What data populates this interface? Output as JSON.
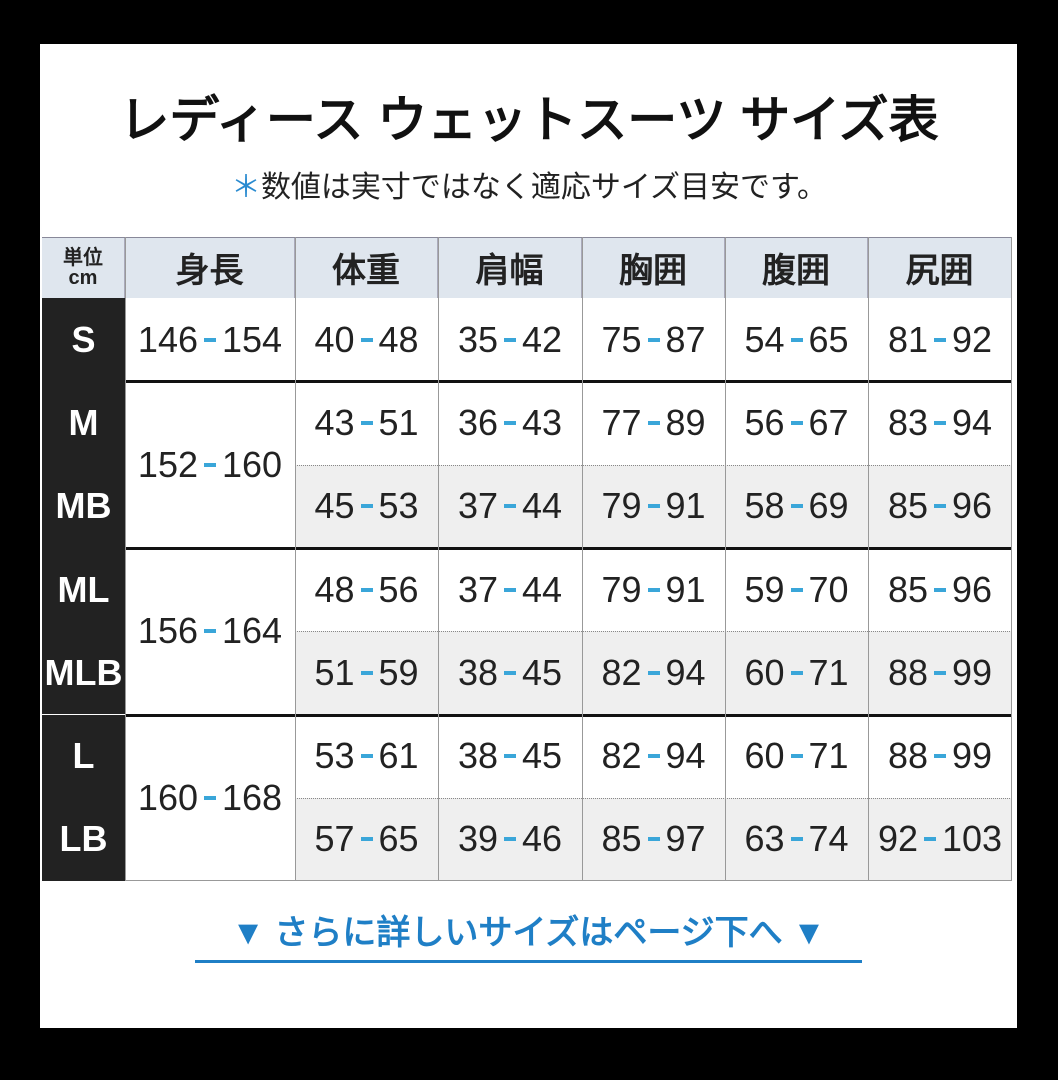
{
  "title": "レディース ウェットスーツ サイズ表",
  "note_mark": "＊",
  "note": "数値は実寸ではなく適応サイズ目安です。",
  "table": {
    "unit": [
      "単位",
      "cm"
    ],
    "header": [
      "身長",
      "体重",
      "肩幅",
      "胸囲",
      "腹囲",
      "尻囲"
    ],
    "groups": [
      {
        "height": [
          146,
          154
        ],
        "sizes": [
          {
            "label": "S",
            "values": [
              [
                40,
                48
              ],
              [
                35,
                42
              ],
              [
                75,
                87
              ],
              [
                54,
                65
              ],
              [
                81,
                92
              ]
            ]
          }
        ]
      },
      {
        "height": [
          152,
          160
        ],
        "sizes": [
          {
            "label": "M",
            "values": [
              [
                43,
                51
              ],
              [
                36,
                43
              ],
              [
                77,
                89
              ],
              [
                56,
                67
              ],
              [
                83,
                94
              ]
            ]
          },
          {
            "label": "MB",
            "values": [
              [
                45,
                53
              ],
              [
                37,
                44
              ],
              [
                79,
                91
              ],
              [
                58,
                69
              ],
              [
                85,
                96
              ]
            ]
          }
        ]
      },
      {
        "height": [
          156,
          164
        ],
        "sizes": [
          {
            "label": "ML",
            "values": [
              [
                48,
                56
              ],
              [
                37,
                44
              ],
              [
                79,
                91
              ],
              [
                59,
                70
              ],
              [
                85,
                96
              ]
            ]
          },
          {
            "label": "MLB",
            "values": [
              [
                51,
                59
              ],
              [
                38,
                45
              ],
              [
                82,
                94
              ],
              [
                60,
                71
              ],
              [
                88,
                99
              ]
            ]
          }
        ]
      },
      {
        "height": [
          160,
          168
        ],
        "sizes": [
          {
            "label": "L",
            "values": [
              [
                53,
                61
              ],
              [
                38,
                45
              ],
              [
                82,
                94
              ],
              [
                60,
                71
              ],
              [
                88,
                99
              ]
            ]
          },
          {
            "label": "LB",
            "values": [
              [
                57,
                65
              ],
              [
                39,
                46
              ],
              [
                85,
                97
              ],
              [
                63,
                74
              ],
              [
                92,
                103
              ]
            ]
          }
        ]
      }
    ]
  },
  "link": "▼ さらに詳しいサイズはページ下へ ▼"
}
